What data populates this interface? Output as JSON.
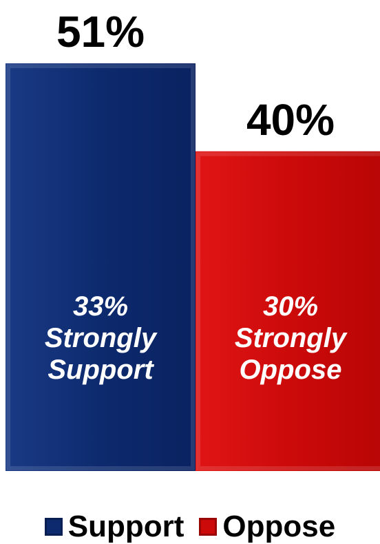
{
  "chart_data": {
    "type": "bar",
    "categories": [
      "Support",
      "Oppose"
    ],
    "values": [
      51,
      40
    ],
    "value_labels": [
      "51%",
      "40%"
    ],
    "inner_labels": [
      [
        "33%",
        "Strongly",
        "Support"
      ],
      [
        "30%",
        "Strongly",
        "Oppose"
      ]
    ],
    "colors": [
      "#0d2a6e",
      "#cc0a0a"
    ],
    "ylim": [
      0,
      51
    ],
    "grid": false,
    "legend_position": "bottom",
    "title": "",
    "xlabel": "",
    "ylabel": ""
  },
  "legend": [
    {
      "label": "Support",
      "color": "#0d2a6e"
    },
    {
      "label": "Oppose",
      "color": "#cc0a0a"
    }
  ]
}
